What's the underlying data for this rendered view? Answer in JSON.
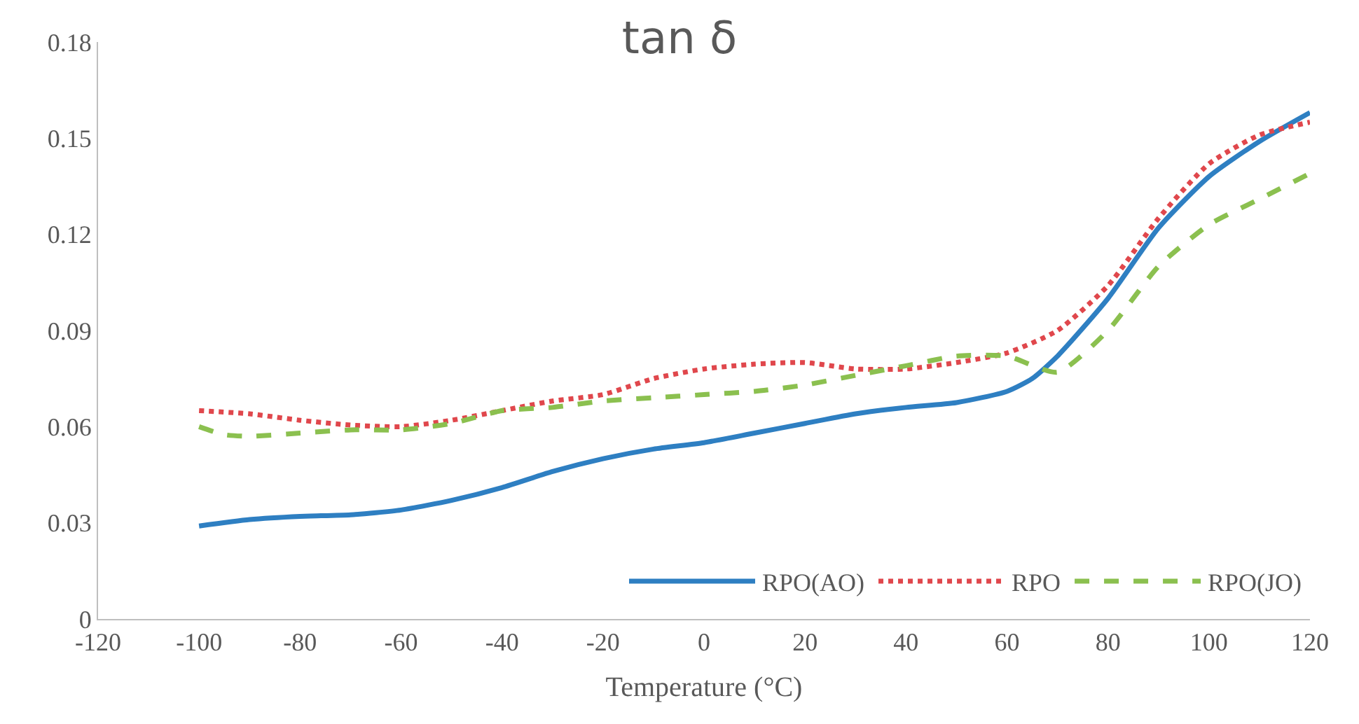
{
  "chart_data": {
    "type": "line",
    "title": "tan δ",
    "xlabel": "Temperature (°C)",
    "xlim": [
      -120,
      120
    ],
    "xticks": [
      -120,
      -100,
      -80,
      -60,
      -40,
      -20,
      0,
      20,
      40,
      60,
      80,
      100,
      120
    ],
    "ylim": [
      0,
      0.18
    ],
    "yticks": [
      {
        "value": 0,
        "label": "0"
      },
      {
        "value": 0.03,
        "label": "0.03"
      },
      {
        "value": 0.06,
        "label": "0.06"
      },
      {
        "value": 0.09,
        "label": "0.09"
      },
      {
        "value": 0.12,
        "label": "0.12"
      },
      {
        "value": 0.15,
        "label": "0.15"
      },
      {
        "value": 0.18,
        "label": "0.18"
      }
    ],
    "legend": "bottom right",
    "marker": "none",
    "series": [
      {
        "name": "RPO(AO)",
        "color": "#2e7fc2",
        "line_style": "solid",
        "x": [
          -100,
          -90,
          -80,
          -70,
          -60,
          -50,
          -40,
          -30,
          -20,
          -10,
          0,
          10,
          20,
          30,
          40,
          50,
          60,
          65,
          70,
          80,
          90,
          100,
          110,
          120
        ],
        "values": [
          0.029,
          0.031,
          0.032,
          0.0325,
          0.034,
          0.037,
          0.041,
          0.046,
          0.05,
          0.053,
          0.055,
          0.058,
          0.061,
          0.064,
          0.066,
          0.0675,
          0.071,
          0.075,
          0.082,
          0.1,
          0.122,
          0.138,
          0.149,
          0.158
        ]
      },
      {
        "name": "RPO",
        "color": "#e0474c",
        "line_style": "dotted",
        "x": [
          -100,
          -90,
          -80,
          -70,
          -60,
          -50,
          -40,
          -30,
          -20,
          -10,
          0,
          10,
          20,
          30,
          40,
          50,
          60,
          70,
          80,
          90,
          100,
          110,
          120
        ],
        "values": [
          0.065,
          0.064,
          0.062,
          0.0605,
          0.06,
          0.062,
          0.065,
          0.068,
          0.07,
          0.075,
          0.078,
          0.0795,
          0.08,
          0.078,
          0.078,
          0.08,
          0.083,
          0.09,
          0.104,
          0.125,
          0.142,
          0.151,
          0.155
        ]
      },
      {
        "name": "RPO(JO)",
        "color": "#8bc04f",
        "line_style": "dashed",
        "x": [
          -100,
          -95,
          -90,
          -80,
          -70,
          -60,
          -50,
          -40,
          -30,
          -20,
          -10,
          0,
          10,
          20,
          30,
          40,
          50,
          60,
          70,
          80,
          90,
          100,
          110,
          120
        ],
        "values": [
          0.06,
          0.0575,
          0.057,
          0.058,
          0.059,
          0.059,
          0.061,
          0.065,
          0.066,
          0.068,
          0.069,
          0.07,
          0.071,
          0.073,
          0.076,
          0.079,
          0.082,
          0.082,
          0.077,
          0.09,
          0.11,
          0.123,
          0.131,
          0.139
        ]
      }
    ]
  }
}
